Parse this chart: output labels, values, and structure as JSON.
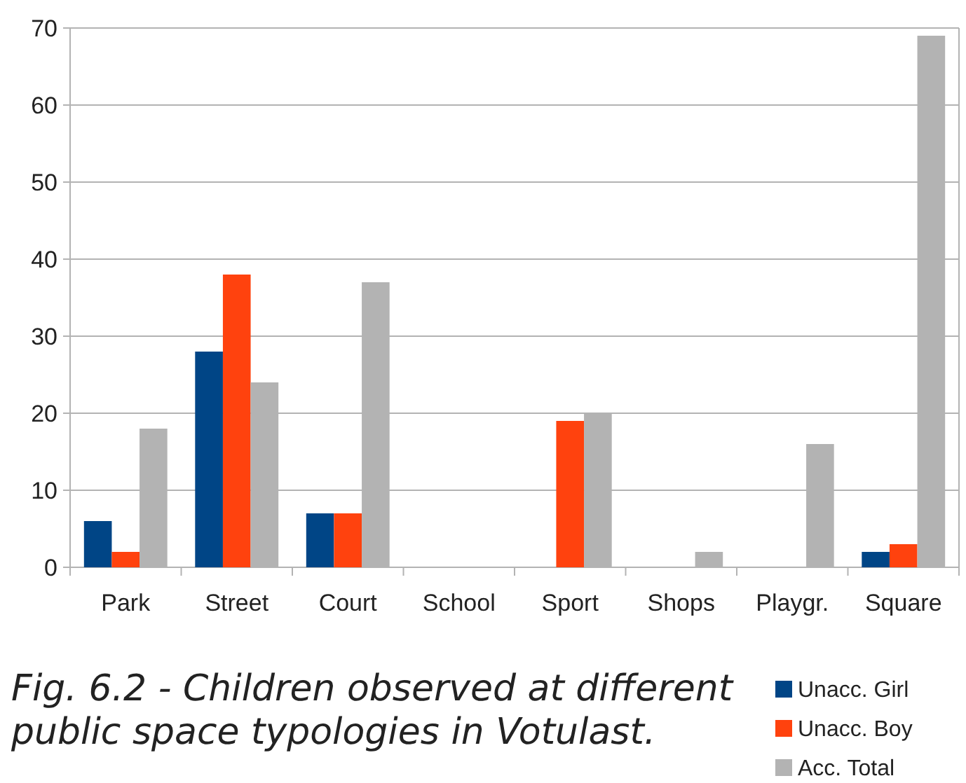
{
  "chart_data": {
    "type": "bar",
    "title": "Fig. 6.2 - Children observed at different public space typologies in Votulast.",
    "categories": [
      "Park",
      "Street",
      "Court",
      "School",
      "Sport",
      "Shops",
      "Playgr.",
      "Square"
    ],
    "series": [
      {
        "name": "Unacc. Girl",
        "color": "#004586",
        "values": [
          6,
          28,
          7,
          0,
          0,
          0,
          0,
          2
        ]
      },
      {
        "name": "Unacc. Boy",
        "color": "#ff420e",
        "values": [
          2,
          38,
          7,
          0,
          19,
          0,
          0,
          3
        ]
      },
      {
        "name": "Acc. Total",
        "color": "#b3b3b3",
        "values": [
          18,
          24,
          37,
          0,
          20,
          2,
          16,
          69
        ]
      }
    ],
    "ylim": [
      0,
      70
    ],
    "yticks": [
      0,
      10,
      20,
      30,
      40,
      50,
      60,
      70
    ],
    "grid": "y",
    "legend": "bottom right"
  }
}
